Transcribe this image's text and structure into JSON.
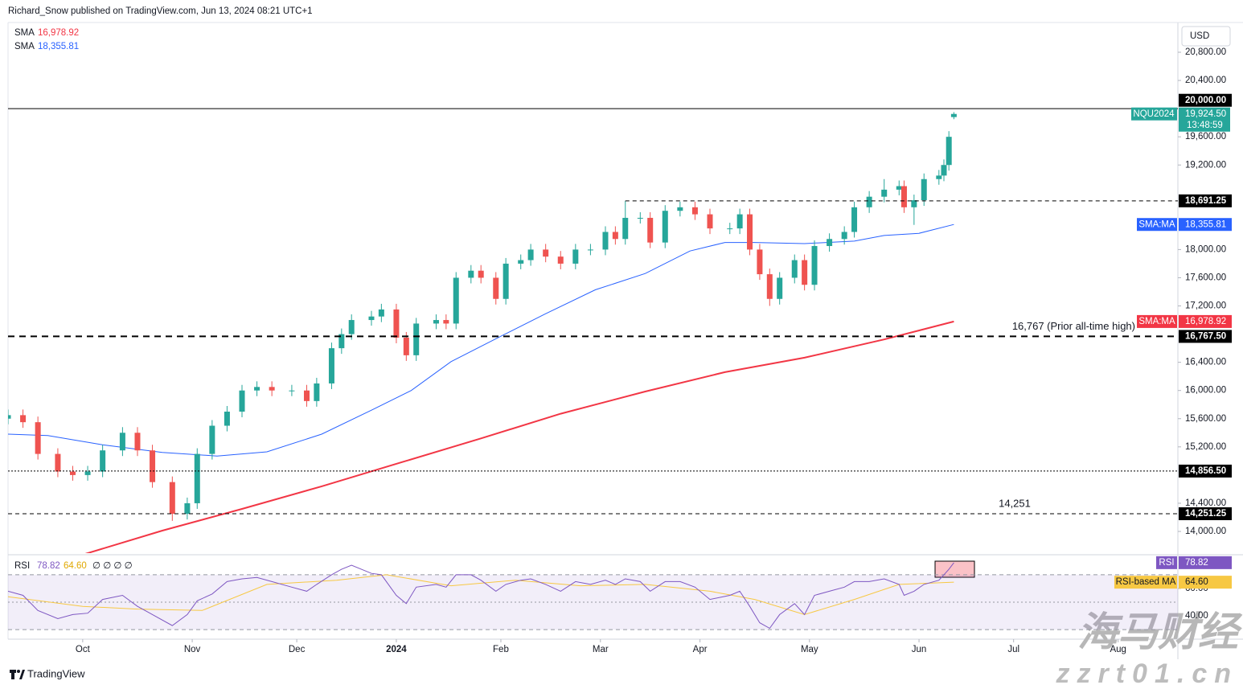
{
  "header": {
    "published": "Richard_Snow published on TradingView.com, Jun 13, 2024 08:21 UTC+1"
  },
  "chart_data": {
    "type": "candlestick",
    "x": [
      -14,
      -11,
      -8,
      -4,
      -1,
      2,
      5,
      9,
      12,
      15,
      19,
      22,
      24,
      27,
      30,
      33,
      36,
      39,
      43,
      46,
      48,
      51,
      53,
      55,
      59,
      61,
      64,
      66,
      68,
      72,
      74,
      76,
      79,
      81,
      84,
      86,
      89,
      91,
      94,
      97,
      100,
      103,
      106,
      108,
      110,
      113,
      115,
      118,
      121,
      124,
      127,
      131,
      133,
      135,
      137,
      139,
      141,
      144,
      146,
      148,
      151,
      154,
      156,
      159,
      162,
      165,
      166,
      168,
      170,
      173,
      174,
      175,
      176
    ],
    "open": [
      15600,
      15650,
      15550,
      15100,
      14850,
      14800,
      14850,
      15150,
      15400,
      15150,
      14700,
      14250,
      14400,
      15100,
      15500,
      15700,
      16000,
      16050,
      16000,
      16000,
      15850,
      16100,
      16600,
      16800,
      17000,
      17050,
      17150,
      16750,
      16500,
      16950,
      17000,
      16950,
      17600,
      17700,
      17600,
      17300,
      17800,
      17850,
      18000,
      17900,
      17800,
      18000,
      18000,
      18250,
      18150,
      18450,
      18450,
      18100,
      18550,
      18600,
      18500,
      18300,
      18300,
      18500,
      18000,
      17650,
      17300,
      17600,
      17850,
      17500,
      18050,
      18150,
      18250,
      18600,
      18750,
      18850,
      18900,
      18600,
      18700,
      19000,
      19050,
      19200,
      19880
    ],
    "high": [
      15730,
      15730,
      15630,
      15180,
      14930,
      14930,
      15230,
      15480,
      15480,
      15230,
      14780,
      14480,
      15180,
      15580,
      15780,
      16080,
      16130,
      16130,
      16080,
      16080,
      16180,
      16680,
      16880,
      17080,
      17130,
      17230,
      17230,
      16830,
      17030,
      17080,
      17080,
      17680,
      17780,
      17780,
      17680,
      17880,
      17930,
      18080,
      18080,
      17980,
      18080,
      18080,
      18330,
      18330,
      18691.25,
      18530,
      18530,
      18630,
      18680,
      18680,
      18580,
      18380,
      18580,
      18580,
      18080,
      17730,
      17680,
      17930,
      17930,
      18130,
      18230,
      18330,
      18680,
      18830,
      19000,
      18980,
      18980,
      18780,
      19080,
      19130,
      19280,
      19680,
      19950
    ],
    "low": [
      15520,
      15470,
      15020,
      14770,
      14720,
      14720,
      14770,
      15070,
      15070,
      14620,
      14150,
      14170,
      14320,
      15020,
      15420,
      15620,
      15920,
      15920,
      15920,
      15770,
      15770,
      16020,
      16520,
      16720,
      16920,
      16970,
      16670,
      16420,
      16420,
      16870,
      16870,
      16870,
      17520,
      17520,
      17220,
      17220,
      17720,
      17770,
      17820,
      17720,
      17720,
      17920,
      17920,
      18070,
      18070,
      18370,
      18020,
      18020,
      18470,
      18420,
      18220,
      18220,
      18220,
      17920,
      17570,
      17200,
      17220,
      17520,
      17420,
      17420,
      17970,
      18070,
      18170,
      18520,
      18670,
      18770,
      18520,
      18350,
      18620,
      18920,
      18970,
      19120,
      19850
    ],
    "close": [
      15650,
      15550,
      15100,
      14850,
      14800,
      14850,
      15150,
      15400,
      15150,
      14700,
      14250,
      14400,
      15100,
      15500,
      15700,
      16000,
      16050,
      16000,
      16000,
      15850,
      16100,
      16600,
      16800,
      17000,
      17050,
      17150,
      16750,
      16500,
      16950,
      17000,
      16950,
      17600,
      17700,
      17600,
      17300,
      17800,
      17850,
      18000,
      17900,
      17800,
      18000,
      18000,
      18250,
      18150,
      18450,
      18450,
      18100,
      18550,
      18600,
      18500,
      18300,
      18300,
      18500,
      18000,
      17650,
      17300,
      17600,
      17850,
      17500,
      18050,
      18150,
      18250,
      18600,
      18750,
      18850,
      18900,
      18600,
      18700,
      19000,
      19050,
      19200,
      19600,
      19924.5
    ],
    "up_color": "#26a69a",
    "down_color": "#ef5350",
    "xlim": [
      -14,
      221
    ],
    "xticks": [
      {
        "value": 1,
        "label": "Oct"
      },
      {
        "value": 23,
        "label": "Nov"
      },
      {
        "value": 44,
        "label": "Dec"
      },
      {
        "value": 64,
        "label": "2024"
      },
      {
        "value": 85,
        "label": "Feb"
      },
      {
        "value": 105,
        "label": "Mar"
      },
      {
        "value": 125,
        "label": "Apr"
      },
      {
        "value": 147,
        "label": "May"
      },
      {
        "value": 169,
        "label": "Jun"
      },
      {
        "value": 188,
        "label": "Jul"
      },
      {
        "value": 209,
        "label": "Aug"
      }
    ],
    "ylim": [
      13692,
      21222
    ],
    "yticks": [
      {
        "value": 14000,
        "label": "14,000.00"
      },
      {
        "value": 14400,
        "label": "14,400.00"
      },
      {
        "value": 15200,
        "label": "15,200.00"
      },
      {
        "value": 15600,
        "label": "15,600.00"
      },
      {
        "value": 16000,
        "label": "16,000.00"
      },
      {
        "value": 16400,
        "label": "16,400.00"
      },
      {
        "value": 17200,
        "label": "17,200.00"
      },
      {
        "value": 17600,
        "label": "17,600.00"
      },
      {
        "value": 18000,
        "label": "18,000.00"
      },
      {
        "value": 19200,
        "label": "19,200.00"
      },
      {
        "value": 19600,
        "label": "19,600.00"
      },
      {
        "value": 20400,
        "label": "20,400.00"
      },
      {
        "value": 20800,
        "label": "20,800.00"
      }
    ],
    "grid": false,
    "currency": "USD",
    "last": {
      "symbol": "NQU2024",
      "label": "19,924.50",
      "countdown": "13:48:59"
    },
    "series": [
      {
        "name": "SMA",
        "badge": "SMA:MA",
        "color": "#f23645",
        "value_label": "16,978.92",
        "x": [
          1,
          17,
          33,
          49,
          65,
          81,
          97,
          114,
          130,
          146,
          162,
          176
        ],
        "values": [
          13670,
          14011,
          14320,
          14640,
          14980,
          15320,
          15670,
          15985,
          16260,
          16465,
          16725,
          16978.92
        ]
      },
      {
        "name": "SMA",
        "badge": "SMA:MA",
        "color": "#2962ff",
        "value_label": "18,355.81",
        "x": [
          -14,
          -6,
          5,
          17,
          28,
          38,
          49,
          59,
          67,
          75,
          85,
          94,
          104,
          114,
          123,
          130,
          136,
          146,
          156,
          162,
          169,
          176
        ],
        "values": [
          15380,
          15360,
          15230,
          15120,
          15070,
          15130,
          15380,
          15720,
          16000,
          16410,
          16770,
          17090,
          17430,
          17660,
          17980,
          18100,
          18100,
          18085,
          18120,
          18200,
          18230,
          18355.81
        ]
      }
    ],
    "levels": [
      {
        "value": 20000,
        "label": "20,000.00",
        "style": "solid"
      },
      {
        "value": 18691.25,
        "label": "18,691.25",
        "style": "dashed",
        "x_start": 110
      },
      {
        "value": 16767.5,
        "label": "16,767.50",
        "style": "bold-dashed",
        "annotation": "16,767 (Prior all-time high)"
      },
      {
        "value": 14856.5,
        "label": "14,856.50",
        "style": "dotted"
      },
      {
        "value": 14251.25,
        "label": "14,251.25",
        "style": "dashed",
        "annotation": "14,251"
      }
    ],
    "rsi": {
      "name": "RSI",
      "color": "#7e57c2",
      "value_label": "78.82",
      "legend_extra": "∅ ∅ ∅ ∅",
      "values": [
        58,
        55,
        44,
        38,
        41,
        42,
        52,
        55,
        47,
        41,
        33,
        41,
        51,
        56,
        65,
        67,
        68,
        65,
        61,
        58,
        63,
        70,
        74,
        77,
        71,
        70,
        55,
        49,
        61,
        63,
        61,
        70,
        70,
        66,
        58,
        63,
        66,
        67,
        63,
        58,
        65,
        63,
        66,
        63,
        67,
        65,
        58,
        65,
        65,
        61,
        52,
        55,
        58,
        47,
        35,
        31,
        41,
        49,
        41,
        55,
        58,
        61,
        65,
        65,
        67,
        63,
        55,
        58,
        63,
        66,
        70,
        74,
        78.82
      ],
      "ma": {
        "name": "RSI-based MA",
        "color": "#f7c843",
        "value_label": "64.60",
        "x": [
          -14,
          1,
          12,
          25,
          38,
          52,
          62,
          75,
          88,
          101,
          114,
          127,
          136,
          146,
          156,
          165,
          176
        ],
        "values": [
          54,
          47,
          45,
          44,
          63,
          66,
          70,
          62,
          66,
          62,
          63,
          58,
          52,
          41,
          52,
          63,
          64.6
        ]
      },
      "ylim": [
        26,
        80.5
      ],
      "yticks": [
        {
          "value": 40,
          "label": "40.00"
        },
        {
          "value": 60,
          "label": "60.00"
        }
      ],
      "bands": [
        70,
        50,
        30
      ]
    }
  },
  "footer": {
    "brand": "TradingView"
  },
  "watermark": {
    "name": "海马财经",
    "url": "zzrt01.cn"
  }
}
